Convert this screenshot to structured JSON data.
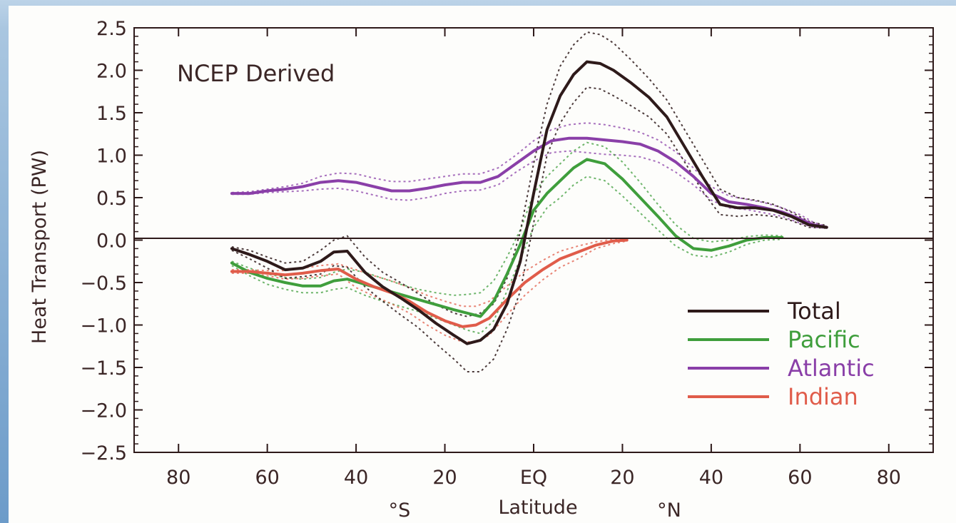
{
  "chart_data": {
    "type": "line",
    "annotation": "NCEP Derived",
    "xlabel": "Latitude",
    "x_hemisphere_labels": [
      "°S",
      "°N"
    ],
    "ylabel": "Heat Transport (PW)",
    "xlim": [
      -90,
      90
    ],
    "ylim": [
      -2.5,
      2.5
    ],
    "x_ticks": [
      -80,
      -60,
      -40,
      -20,
      0,
      20,
      40,
      60,
      80
    ],
    "x_tick_labels": [
      "80",
      "60",
      "40",
      "20",
      "EQ",
      "20",
      "40",
      "60",
      "80"
    ],
    "y_ticks": [
      2.5,
      2.0,
      1.5,
      1.0,
      0.5,
      0.0,
      -0.5,
      -1.0,
      -1.5,
      -2.0,
      -2.5
    ],
    "y_tick_labels": [
      "2.5",
      "2.0",
      "1.5",
      "1.0",
      "0.5",
      "0.0",
      "−0.5",
      "−1.0",
      "−1.5",
      "−2.0",
      "−2.5"
    ],
    "zero_line": true,
    "grid": false,
    "legend_position": "bottom-right",
    "series": [
      {
        "name": "Total",
        "color": "#2e1a1a",
        "x": [
          -68,
          -64,
          -60,
          -56,
          -52,
          -48,
          -45,
          -42,
          -38,
          -34,
          -30,
          -26,
          -22,
          -18,
          -15,
          -12,
          -9,
          -6,
          -3,
          0,
          3,
          6,
          9,
          12,
          15,
          18,
          22,
          26,
          30,
          34,
          38,
          42,
          46,
          50,
          54,
          58,
          62,
          66
        ],
        "y": [
          -0.1,
          -0.17,
          -0.25,
          -0.35,
          -0.33,
          -0.25,
          -0.14,
          -0.13,
          -0.38,
          -0.55,
          -0.68,
          -0.82,
          -0.98,
          -1.12,
          -1.22,
          -1.18,
          -1.05,
          -0.75,
          -0.25,
          0.55,
          1.3,
          1.7,
          1.95,
          2.1,
          2.08,
          2.0,
          1.85,
          1.68,
          1.45,
          1.1,
          0.75,
          0.42,
          0.38,
          0.38,
          0.35,
          0.28,
          0.18,
          0.15
        ],
        "upper": [
          -0.08,
          -0.12,
          -0.2,
          -0.27,
          -0.25,
          -0.12,
          0.0,
          0.05,
          -0.2,
          -0.38,
          -0.5,
          -0.63,
          -0.76,
          -0.86,
          -0.9,
          -0.86,
          -0.75,
          -0.45,
          0.1,
          0.9,
          1.6,
          2.05,
          2.3,
          2.45,
          2.42,
          2.32,
          2.12,
          1.9,
          1.65,
          1.3,
          0.95,
          0.6,
          0.5,
          0.47,
          0.42,
          0.33,
          0.22,
          0.17
        ],
        "lower": [
          -0.12,
          -0.22,
          -0.33,
          -0.45,
          -0.43,
          -0.4,
          -0.3,
          -0.32,
          -0.55,
          -0.72,
          -0.88,
          -1.03,
          -1.22,
          -1.4,
          -1.55,
          -1.55,
          -1.4,
          -1.05,
          -0.6,
          0.2,
          1.0,
          1.38,
          1.62,
          1.8,
          1.78,
          1.7,
          1.58,
          1.45,
          1.25,
          0.92,
          0.58,
          0.3,
          0.28,
          0.3,
          0.28,
          0.23,
          0.15,
          0.14
        ]
      },
      {
        "name": "Pacific",
        "color": "#3f9e3c",
        "x": [
          -68,
          -64,
          -60,
          -56,
          -52,
          -48,
          -45,
          -42,
          -38,
          -34,
          -30,
          -26,
          -22,
          -18,
          -15,
          -12,
          -9,
          -6,
          -3,
          0,
          3,
          6,
          9,
          12,
          16,
          20,
          24,
          28,
          32,
          36,
          40,
          44,
          48,
          52,
          56
        ],
        "y": [
          -0.27,
          -0.38,
          -0.45,
          -0.5,
          -0.54,
          -0.54,
          -0.48,
          -0.46,
          -0.52,
          -0.58,
          -0.64,
          -0.7,
          -0.76,
          -0.82,
          -0.86,
          -0.9,
          -0.72,
          -0.4,
          -0.05,
          0.35,
          0.55,
          0.7,
          0.85,
          0.95,
          0.9,
          0.72,
          0.5,
          0.28,
          0.05,
          -0.1,
          -0.12,
          -0.07,
          0.0,
          0.03,
          0.03
        ],
        "upper": [
          -0.25,
          -0.33,
          -0.4,
          -0.44,
          -0.46,
          -0.44,
          -0.38,
          -0.34,
          -0.38,
          -0.45,
          -0.52,
          -0.58,
          -0.62,
          -0.65,
          -0.64,
          -0.62,
          -0.48,
          -0.2,
          0.12,
          0.55,
          0.75,
          0.9,
          1.05,
          1.15,
          1.1,
          0.92,
          0.68,
          0.42,
          0.18,
          0.02,
          -0.02,
          0.0,
          0.04,
          0.06,
          0.05
        ],
        "lower": [
          -0.3,
          -0.42,
          -0.52,
          -0.58,
          -0.62,
          -0.62,
          -0.58,
          -0.56,
          -0.65,
          -0.72,
          -0.78,
          -0.84,
          -0.92,
          -1.0,
          -1.06,
          -1.1,
          -0.95,
          -0.6,
          -0.22,
          0.15,
          0.38,
          0.5,
          0.65,
          0.75,
          0.7,
          0.52,
          0.32,
          0.12,
          -0.07,
          -0.18,
          -0.2,
          -0.14,
          -0.05,
          0.0,
          0.01
        ]
      },
      {
        "name": "Atlantic",
        "color": "#8a3fa8",
        "x": [
          -68,
          -64,
          -60,
          -56,
          -52,
          -48,
          -44,
          -40,
          -36,
          -32,
          -28,
          -24,
          -20,
          -16,
          -12,
          -8,
          -4,
          0,
          4,
          8,
          12,
          16,
          20,
          24,
          28,
          32,
          36,
          40,
          44,
          48,
          52,
          56,
          60,
          63,
          66
        ],
        "y": [
          0.55,
          0.55,
          0.58,
          0.6,
          0.63,
          0.68,
          0.7,
          0.68,
          0.63,
          0.58,
          0.58,
          0.61,
          0.65,
          0.68,
          0.68,
          0.75,
          0.9,
          1.05,
          1.17,
          1.2,
          1.2,
          1.18,
          1.16,
          1.13,
          1.05,
          0.92,
          0.75,
          0.55,
          0.45,
          0.42,
          0.38,
          0.33,
          0.25,
          0.18,
          0.15
        ],
        "upper": [
          0.56,
          0.57,
          0.6,
          0.63,
          0.67,
          0.75,
          0.79,
          0.78,
          0.73,
          0.69,
          0.69,
          0.72,
          0.75,
          0.78,
          0.78,
          0.85,
          1.0,
          1.17,
          1.3,
          1.36,
          1.38,
          1.36,
          1.32,
          1.27,
          1.18,
          1.04,
          0.85,
          0.63,
          0.52,
          0.48,
          0.44,
          0.38,
          0.3,
          0.21,
          0.16
        ],
        "lower": [
          0.54,
          0.54,
          0.56,
          0.57,
          0.58,
          0.6,
          0.61,
          0.58,
          0.53,
          0.48,
          0.47,
          0.5,
          0.55,
          0.58,
          0.59,
          0.65,
          0.8,
          0.93,
          1.03,
          1.05,
          1.03,
          1.01,
          1.0,
          0.98,
          0.92,
          0.8,
          0.65,
          0.47,
          0.38,
          0.36,
          0.32,
          0.28,
          0.2,
          0.15,
          0.14
        ]
      },
      {
        "name": "Indian",
        "color": "#e05c4a",
        "x": [
          -68,
          -64,
          -60,
          -56,
          -52,
          -48,
          -44,
          -40,
          -36,
          -32,
          -28,
          -24,
          -20,
          -16,
          -13,
          -10,
          -6,
          -2,
          2,
          6,
          10,
          14,
          18,
          21
        ],
        "y": [
          -0.37,
          -0.37,
          -0.39,
          -0.41,
          -0.39,
          -0.36,
          -0.34,
          -0.46,
          -0.55,
          -0.62,
          -0.72,
          -0.85,
          -0.95,
          -1.02,
          -1.0,
          -0.92,
          -0.7,
          -0.5,
          -0.35,
          -0.22,
          -0.14,
          -0.06,
          -0.01,
          0.0
        ],
        "upper": [
          -0.35,
          -0.35,
          -0.36,
          -0.36,
          -0.33,
          -0.3,
          -0.28,
          -0.35,
          -0.42,
          -0.48,
          -0.56,
          -0.65,
          -0.72,
          -0.78,
          -0.78,
          -0.72,
          -0.54,
          -0.37,
          -0.24,
          -0.13,
          -0.07,
          -0.02,
          0.01,
          0.01
        ],
        "lower": [
          -0.39,
          -0.39,
          -0.42,
          -0.46,
          -0.45,
          -0.42,
          -0.4,
          -0.56,
          -0.66,
          -0.75,
          -0.86,
          -1.0,
          -1.12,
          -1.2,
          -1.2,
          -1.12,
          -0.88,
          -0.65,
          -0.47,
          -0.32,
          -0.22,
          -0.1,
          -0.04,
          -0.01
        ]
      }
    ]
  }
}
